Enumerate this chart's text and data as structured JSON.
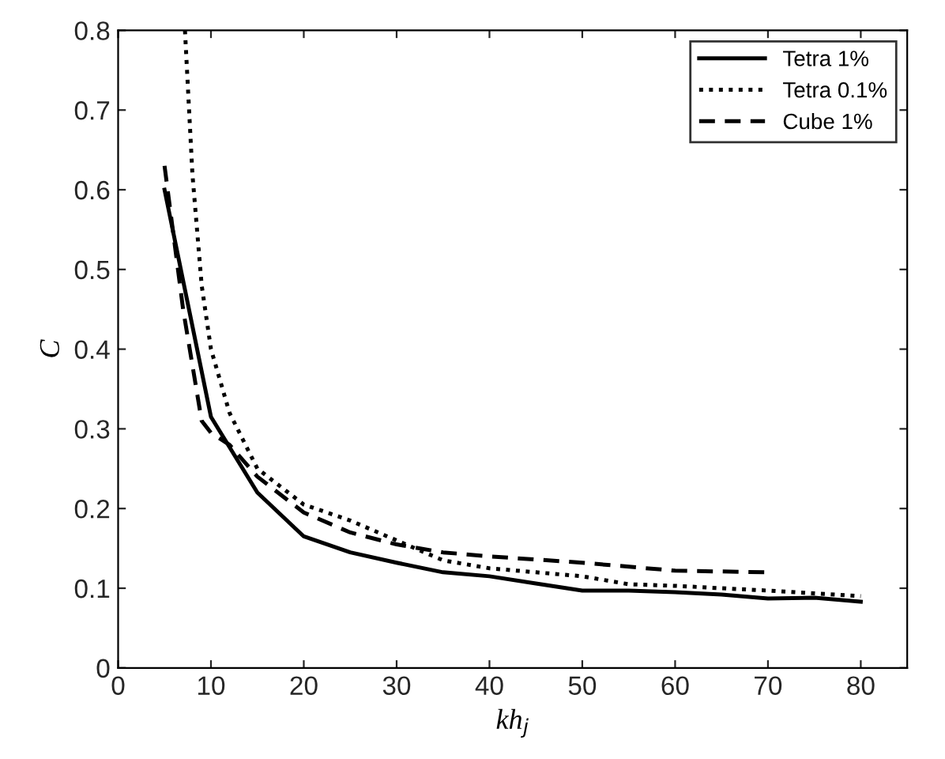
{
  "chart_data": {
    "type": "line",
    "xlabel": "kh$_{j}$",
    "ylabel": "C",
    "xlim": [
      0,
      85
    ],
    "xticks": [
      0,
      10,
      20,
      30,
      40,
      50,
      60,
      70,
      80
    ],
    "ylim": [
      0,
      0.8
    ],
    "yticks": [
      0,
      0.1,
      0.2,
      0.3,
      0.4,
      0.5,
      0.6,
      0.7,
      0.8
    ],
    "legend": "top right",
    "grid": false,
    "series": [
      {
        "name": "Tetra 1%",
        "color": "#000000",
        "line_style": "solid",
        "x": [
          5,
          10,
          15,
          20,
          25,
          30,
          35,
          40,
          45,
          50,
          55,
          60,
          65,
          70,
          75,
          80
        ],
        "values": [
          0.6,
          0.315,
          0.22,
          0.165,
          0.145,
          0.132,
          0.12,
          0.115,
          0.106,
          0.097,
          0.097,
          0.095,
          0.092,
          0.087,
          0.088,
          0.083
        ]
      },
      {
        "name": "Tetra 0.1%",
        "color": "#000000",
        "line_style": "dotted",
        "x": [
          7.2,
          8,
          9,
          10,
          12,
          15,
          20,
          25,
          30,
          35,
          40,
          45,
          50,
          55,
          60,
          70,
          80
        ],
        "values": [
          0.8,
          0.62,
          0.48,
          0.4,
          0.32,
          0.25,
          0.205,
          0.185,
          0.16,
          0.135,
          0.125,
          0.12,
          0.115,
          0.105,
          0.103,
          0.097,
          0.09
        ]
      },
      {
        "name": "Cube 1%",
        "color": "#000000",
        "line_style": "dashed",
        "x": [
          5,
          7,
          9,
          10,
          12,
          15,
          20,
          25,
          30,
          35,
          40,
          50,
          60,
          70
        ],
        "values": [
          0.63,
          0.45,
          0.31,
          0.295,
          0.28,
          0.24,
          0.195,
          0.17,
          0.155,
          0.145,
          0.14,
          0.132,
          0.122,
          0.12
        ]
      }
    ]
  }
}
